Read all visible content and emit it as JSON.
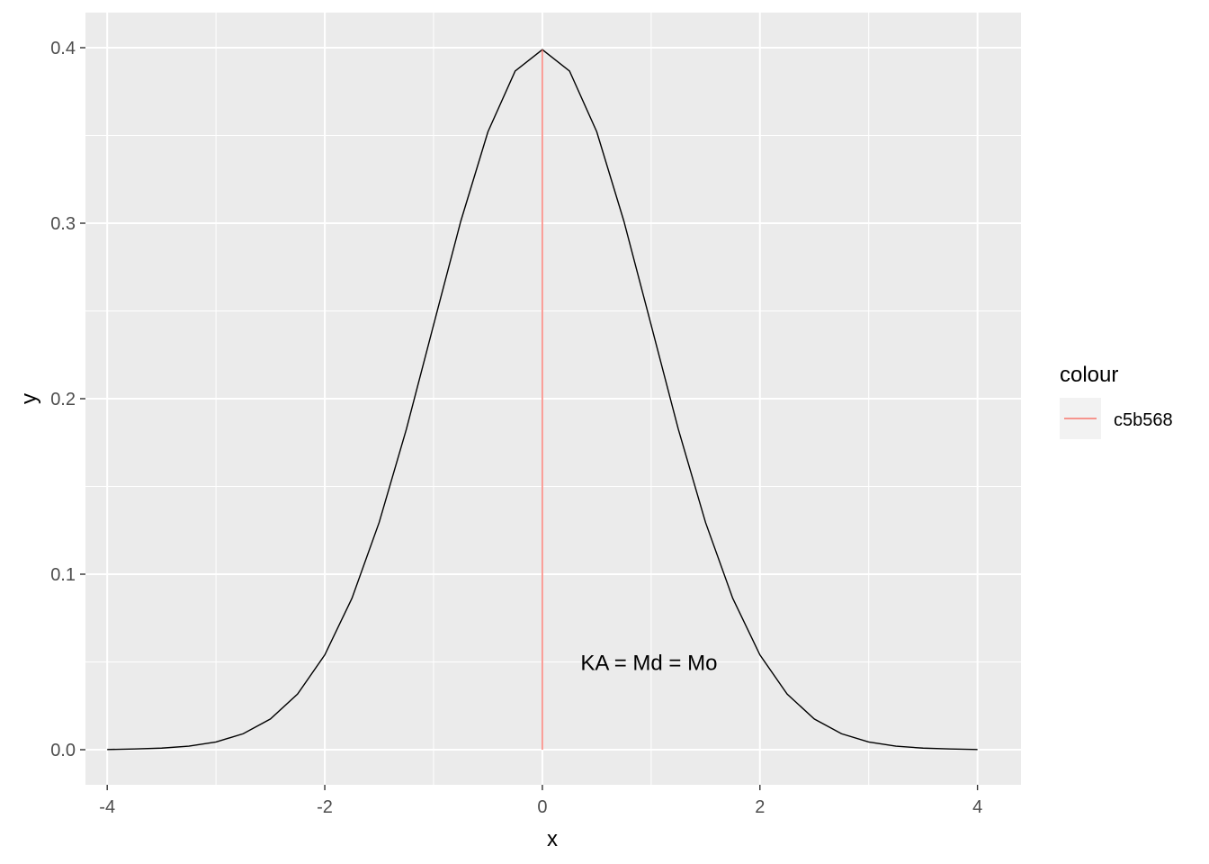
{
  "chart_data": {
    "type": "line",
    "xlabel": "x",
    "ylabel": "y",
    "xlim": [
      -4.2,
      4.4
    ],
    "ylim": [
      -0.02,
      0.42
    ],
    "x_ticks": [
      -4,
      -2,
      0,
      2,
      4
    ],
    "x_tick_labels": [
      "-4",
      "-2",
      "0",
      "2",
      "4"
    ],
    "x_minor": [
      -3,
      -1,
      1,
      3
    ],
    "y_ticks": [
      0.0,
      0.1,
      0.2,
      0.3,
      0.4
    ],
    "y_tick_labels": [
      "0.0",
      "0.1",
      "0.2",
      "0.3",
      "0.4"
    ],
    "y_minor": [
      0.05,
      0.15,
      0.25,
      0.35
    ],
    "grid": true,
    "series": [
      {
        "color": "#000000",
        "x": [
          -4,
          -3.75,
          -3.5,
          -3.25,
          -3,
          -2.75,
          -2.5,
          -2.25,
          -2,
          -1.75,
          -1.5,
          -1.25,
          -1,
          -0.75,
          -0.5,
          -0.25,
          0,
          0.25,
          0.5,
          0.75,
          1,
          1.25,
          1.5,
          1.75,
          2,
          2.25,
          2.5,
          2.75,
          3,
          3.25,
          3.5,
          3.75,
          4
        ],
        "values": [
          0.0001,
          0.0004,
          0.0009,
          0.002,
          0.0044,
          0.0091,
          0.0175,
          0.0317,
          0.054,
          0.0863,
          0.1295,
          0.1826,
          0.242,
          0.3011,
          0.3521,
          0.3867,
          0.3989,
          0.3867,
          0.3521,
          0.3011,
          0.242,
          0.1826,
          0.1295,
          0.0863,
          0.054,
          0.0317,
          0.0175,
          0.0091,
          0.0044,
          0.002,
          0.0009,
          0.0004,
          0.0001
        ]
      }
    ],
    "vline": {
      "x": 0,
      "y_from": 0,
      "y_to": 0.3989,
      "color": "#f8766d"
    },
    "annotation": {
      "text": "KA = Md = Mo",
      "x": 0.98,
      "y": 0.05
    },
    "legend": {
      "title": "colour",
      "placement": "right",
      "items": [
        {
          "label": "c5b568",
          "color": "#f8766d"
        }
      ]
    }
  }
}
